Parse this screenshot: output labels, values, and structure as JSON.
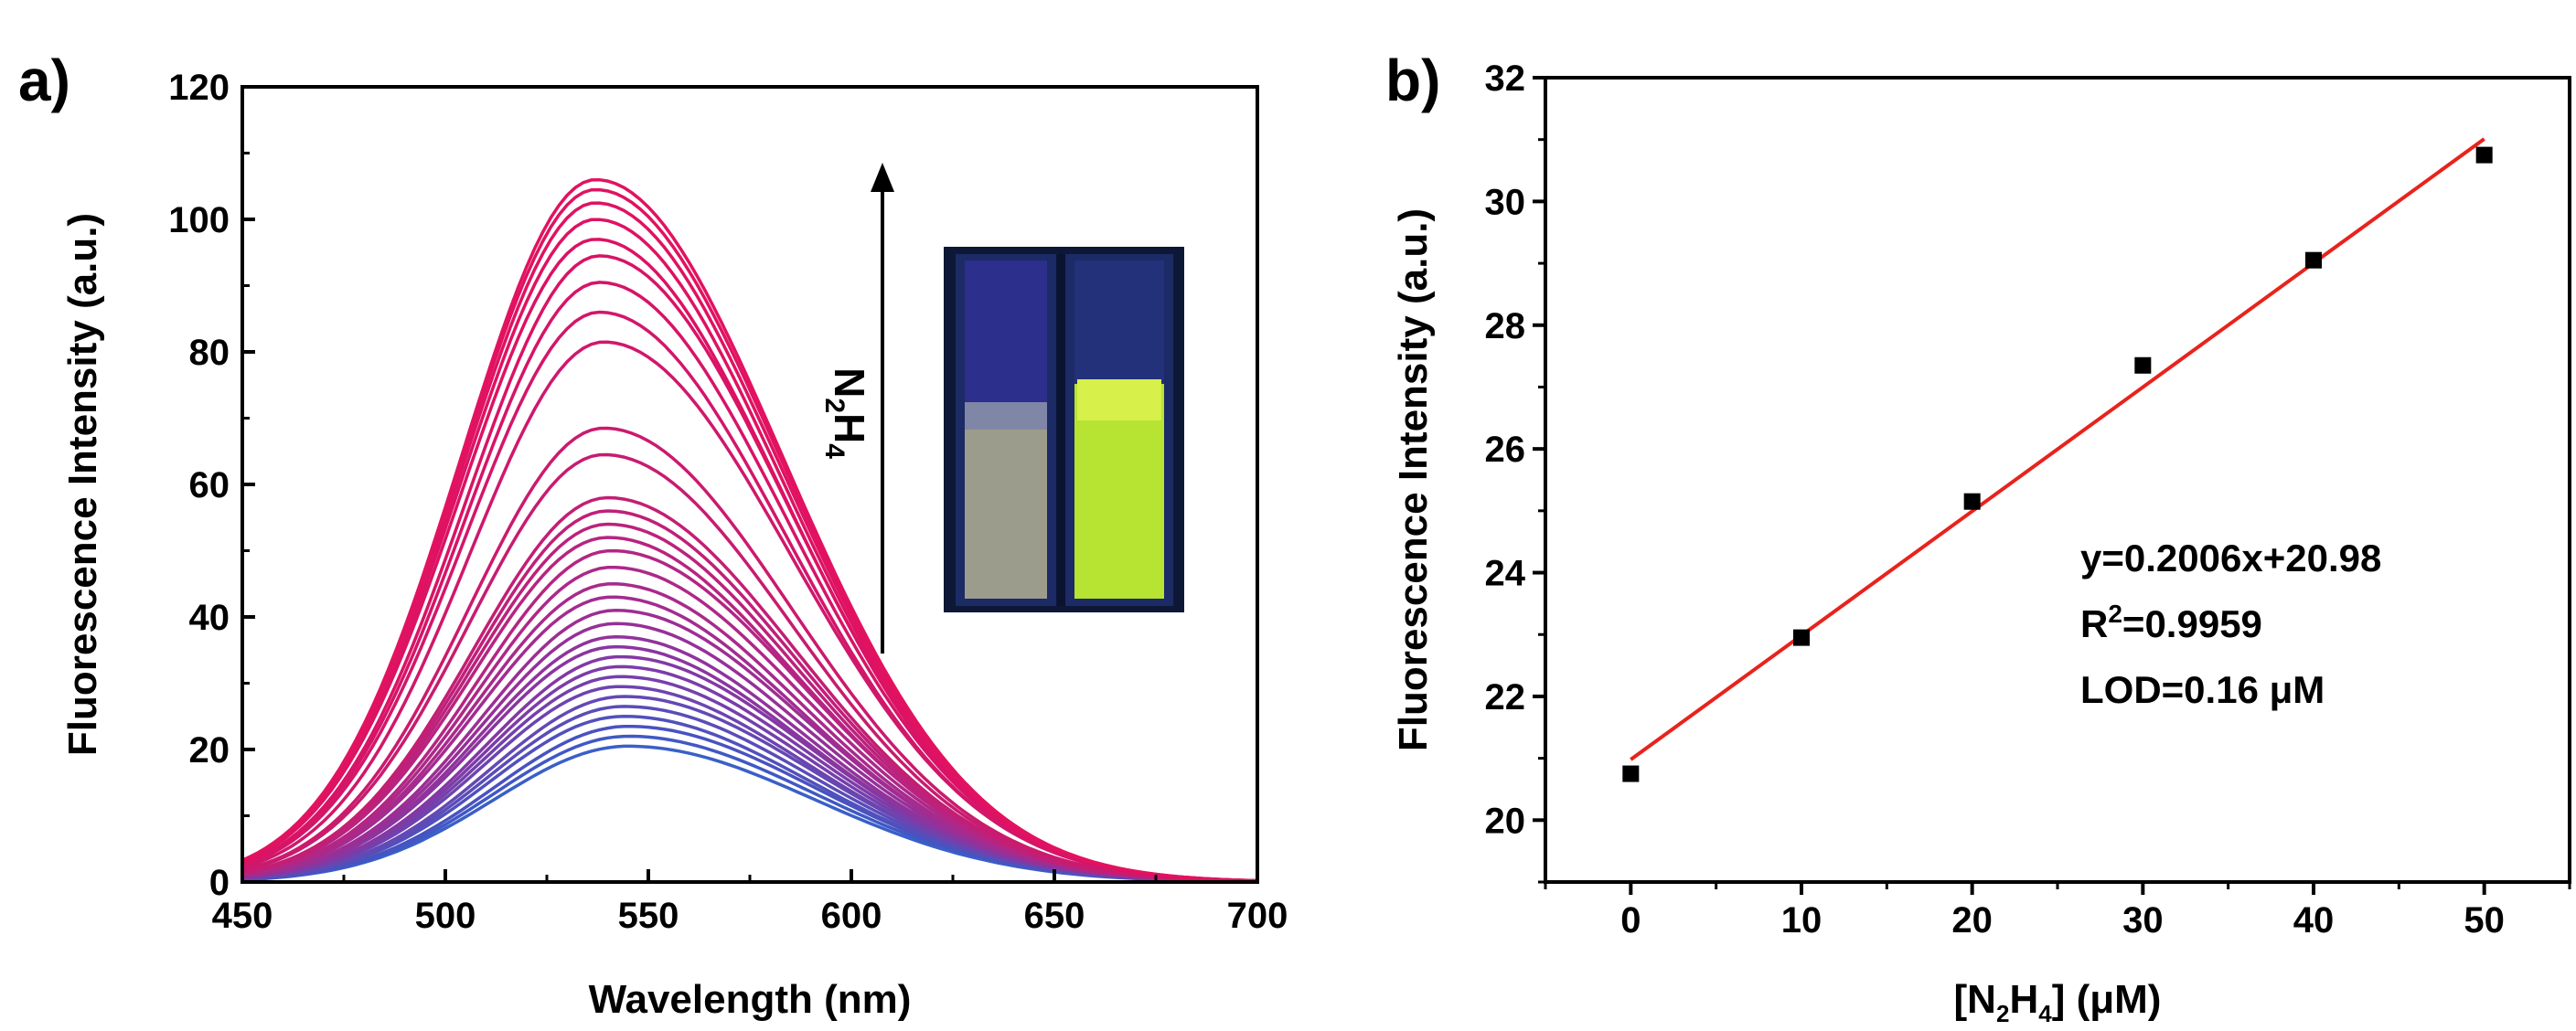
{
  "chart_data": [
    {
      "panel": "a)",
      "type": "line",
      "title": "",
      "xlabel": "Wavelength (nm)",
      "ylabel": "Fluorescence Intensity (a.u.)",
      "xlim": [
        450,
        700
      ],
      "ylim": [
        0,
        120
      ],
      "xticks": [
        450,
        500,
        550,
        600,
        650,
        700
      ],
      "yticks": [
        0,
        20,
        40,
        60,
        80,
        100,
        120
      ],
      "series_description": "Emission spectra recorded with increasing N2H4; peak shifts from ~545 nm to ~537 nm as intensity rises",
      "peaks": [
        {
          "x": 545,
          "y": 20.5,
          "color": "#3a5fc8"
        },
        {
          "x": 545,
          "y": 22,
          "color": "#4058c4"
        },
        {
          "x": 545,
          "y": 23.5,
          "color": "#4852c0"
        },
        {
          "x": 544,
          "y": 25,
          "color": "#5150bc"
        },
        {
          "x": 544,
          "y": 26.5,
          "color": "#5a4cb8"
        },
        {
          "x": 544,
          "y": 28,
          "color": "#6448b4"
        },
        {
          "x": 543,
          "y": 29.5,
          "color": "#6c44b0"
        },
        {
          "x": 543,
          "y": 31,
          "color": "#7440ac"
        },
        {
          "x": 543,
          "y": 32.5,
          "color": "#7c3ca8"
        },
        {
          "x": 543,
          "y": 34,
          "color": "#8338a4"
        },
        {
          "x": 542,
          "y": 35.5,
          "color": "#8a35a0"
        },
        {
          "x": 542,
          "y": 37,
          "color": "#90339c"
        },
        {
          "x": 542,
          "y": 39,
          "color": "#963098"
        },
        {
          "x": 542,
          "y": 41,
          "color": "#9c2e94"
        },
        {
          "x": 541,
          "y": 43,
          "color": "#a22c90"
        },
        {
          "x": 541,
          "y": 45,
          "color": "#a82a8c"
        },
        {
          "x": 541,
          "y": 47.5,
          "color": "#ad2888"
        },
        {
          "x": 541,
          "y": 50,
          "color": "#b22684"
        },
        {
          "x": 540,
          "y": 52,
          "color": "#b72480"
        },
        {
          "x": 540,
          "y": 54,
          "color": "#bb227c"
        },
        {
          "x": 540,
          "y": 56,
          "color": "#bf2078"
        },
        {
          "x": 540,
          "y": 58,
          "color": "#c31e74"
        },
        {
          "x": 539,
          "y": 64.5,
          "color": "#c71c70"
        },
        {
          "x": 539,
          "y": 68.5,
          "color": "#cb1a6e"
        },
        {
          "x": 539,
          "y": 81.5,
          "color": "#cf186c"
        },
        {
          "x": 538,
          "y": 86,
          "color": "#d3166a"
        },
        {
          "x": 538,
          "y": 90.5,
          "color": "#d61468"
        },
        {
          "x": 538,
          "y": 94.5,
          "color": "#d91366"
        },
        {
          "x": 537,
          "y": 97,
          "color": "#dc1264"
        },
        {
          "x": 537,
          "y": 100,
          "color": "#de1263"
        },
        {
          "x": 537,
          "y": 102.5,
          "color": "#e01262"
        },
        {
          "x": 537,
          "y": 104.5,
          "color": "#e11261"
        },
        {
          "x": 537,
          "y": 106,
          "color": "#e21260"
        }
      ],
      "arrow_label": "N2H4"
    },
    {
      "panel": "b)",
      "type": "scatter",
      "title": "",
      "xlabel": "[N2H4] (μM)",
      "ylabel": "Fluorescence Intensity (a.u.)",
      "xlim": [
        -5,
        55
      ],
      "ylim": [
        19,
        32
      ],
      "xticks": [
        0,
        10,
        20,
        30,
        40,
        50
      ],
      "yticks": [
        20,
        22,
        24,
        26,
        28,
        30,
        32
      ],
      "x": [
        0,
        10,
        20,
        30,
        40,
        50
      ],
      "y": [
        20.75,
        22.95,
        25.15,
        27.35,
        29.05,
        30.75
      ],
      "fit": {
        "slope": 0.2006,
        "intercept": 20.98,
        "x_range": [
          0,
          50
        ],
        "color": "#e8231c"
      },
      "annotations": [
        "y=0.2006x+20.98",
        "R",
        "2",
        "=0.9959",
        "LOD=0.16 μM"
      ]
    }
  ]
}
